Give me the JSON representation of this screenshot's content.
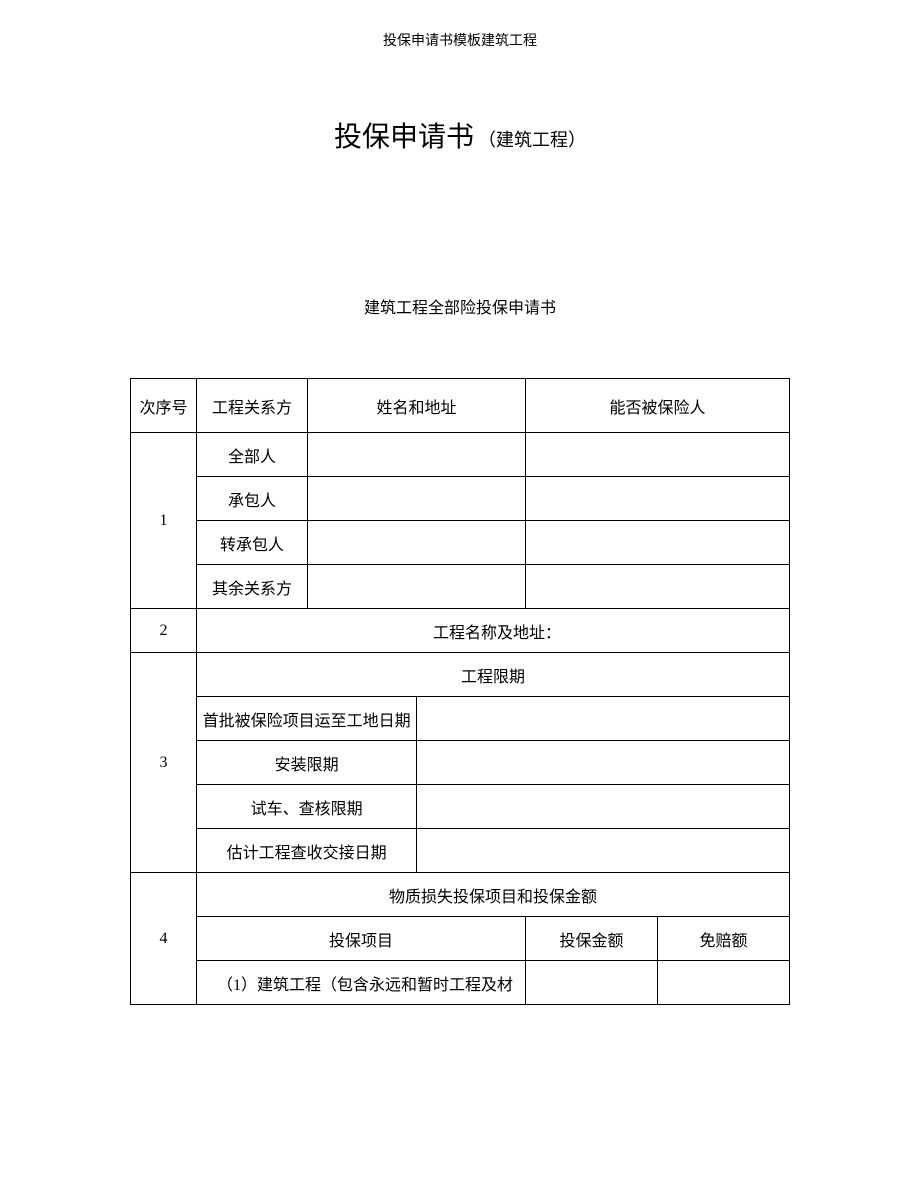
{
  "header": "投保申请书模板建筑工程",
  "title": {
    "main": "投保申请书",
    "suffix": "（建筑工程）"
  },
  "subtitle": "建筑工程全部险投保申请书",
  "table": {
    "headers": {
      "seq": "次序号",
      "party": "工程关系方",
      "name_addr": "姓名和地址",
      "insured": "能否被保险人"
    },
    "row1": {
      "num": "1",
      "parties": {
        "all": "全部人",
        "contractor": "承包人",
        "subcontractor": "转承包人",
        "other": "其余关系方"
      }
    },
    "row2": {
      "num": "2",
      "label": "工程名称及地址："
    },
    "row3": {
      "num": "3",
      "header": "工程限期",
      "items": {
        "first_batch": "首批被保险项目运至工地日期",
        "install": "安装限期",
        "test": "试车、查核限期",
        "handover": "估计工程查收交接日期"
      }
    },
    "row4": {
      "num": "4",
      "header": "物质损失投保项目和投保金额",
      "cols": {
        "project": "投保项目",
        "amount": "投保金额",
        "deduct": "免赔额"
      },
      "item1": "（1）建筑工程（包含永远和暂时工程及材"
    }
  }
}
